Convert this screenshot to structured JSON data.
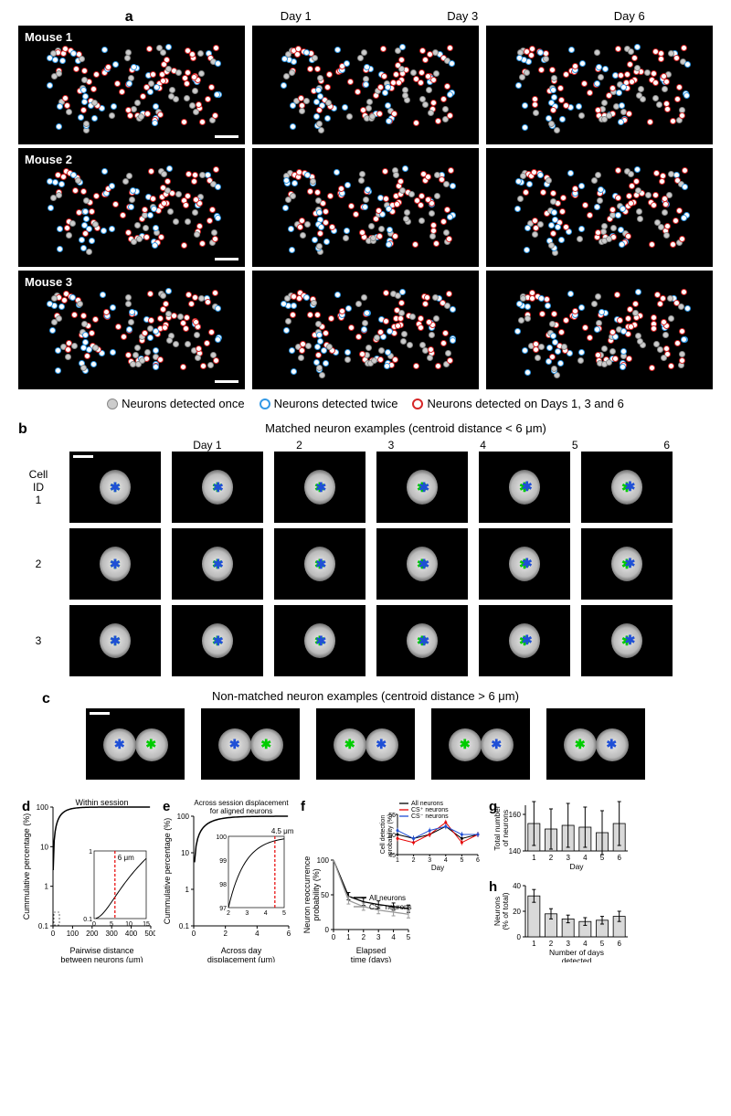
{
  "colors": {
    "black": "#000000",
    "white": "#ffffff",
    "gray_fill": "#cccccc",
    "gray_stroke": "#888888",
    "blue_stroke": "#3399e6",
    "red_stroke": "#d62728",
    "red_line": "#e60000",
    "blue_line": "#1f4fd6",
    "green_star": "#00cc00",
    "blue_star": "#1f4fd6"
  },
  "panel_a": {
    "label": "a",
    "column_headers": [
      "Day 1",
      "Day 3",
      "Day 6"
    ],
    "row_labels": [
      "Mouse 1",
      "Mouse 2",
      "Mouse 3"
    ],
    "legend": [
      {
        "key": "once",
        "text": "Neurons detected once"
      },
      {
        "key": "twice",
        "text": "Neurons detected twice"
      },
      {
        "key": "all",
        "text": "Neurons detected on Days 1, 3 and 6"
      }
    ]
  },
  "panel_b": {
    "label": "b",
    "title": "Matched neuron examples (centroid distance < 6 μm)",
    "day_header_prefix": "Day",
    "cell_id_header": "Cell\nID",
    "days": [
      "1",
      "2",
      "3",
      "4",
      "5",
      "6"
    ],
    "cell_ids": [
      "1",
      "2",
      "3"
    ]
  },
  "panel_c": {
    "label": "c",
    "title": "Non-matched neuron examples (centroid distance > 6 μm)",
    "count": 5
  },
  "panel_d": {
    "label": "d",
    "title": "Within session",
    "xlabel": "Pairwise distance\nbetween neurons (μm)",
    "ylabel": "Cummulative percentage (%)",
    "xlim": [
      0,
      500
    ],
    "xtick_step": 100,
    "yticks": [
      0.1,
      1,
      10,
      100
    ],
    "threshold_label": "6 μm",
    "inset_xlim": [
      0,
      15
    ],
    "inset_yticks": [
      0.1,
      1
    ]
  },
  "panel_e": {
    "label": "e",
    "title": "Across session displacement\nfor aligned neurons",
    "xlabel": "Across day\ndisplacement (μm)",
    "ylabel": "Cummulative percentage (%)",
    "xlim": [
      0,
      6
    ],
    "xtick_step": 2,
    "yticks": [
      0.1,
      1,
      10,
      100
    ],
    "threshold_label": "4.5 μm",
    "inset_xlim": [
      2,
      5
    ],
    "inset_yticks": [
      97,
      98,
      99,
      100
    ]
  },
  "panel_f": {
    "label": "f",
    "xlabel": "Elapsed\ntime (days)",
    "ylabel": "Neuron reoccurrence\nprobability (%)",
    "xlim": [
      0,
      5
    ],
    "xtick_step": 1,
    "ylim": [
      0,
      100
    ],
    "ytick_step": 50,
    "series": [
      {
        "name": "All neurons",
        "color": "#000000",
        "y": [
          100,
          48,
          40,
          36,
          33,
          30
        ]
      },
      {
        "name": "CS⁻ neurons",
        "color": "#999999",
        "y": [
          100,
          42,
          33,
          28,
          25,
          22
        ]
      }
    ],
    "inset": {
      "title_series": [
        {
          "name": "All neurons",
          "color": "#000000"
        },
        {
          "name": "CS⁺ neurons",
          "color": "#e60000"
        },
        {
          "name": "CS⁻ neurons",
          "color": "#1f4fd6"
        }
      ],
      "xlabel": "Day",
      "ylabel": "Cell detection\nprobability (%)",
      "xlim": [
        1,
        6
      ],
      "ylim": [
        45,
        55
      ],
      "series": [
        {
          "color": "#000000",
          "y": [
            50,
            49,
            50,
            52,
            49,
            50
          ]
        },
        {
          "color": "#e60000",
          "y": [
            49,
            48,
            50,
            53,
            48,
            50
          ]
        },
        {
          "color": "#1f4fd6",
          "y": [
            51,
            49,
            51,
            52,
            50,
            50
          ]
        }
      ]
    }
  },
  "panel_g": {
    "label": "g",
    "xlabel": "Day",
    "ylabel": "Total number\nof neurons",
    "categories": [
      "1",
      "2",
      "3",
      "4",
      "5",
      "6"
    ],
    "values": [
      155,
      152,
      154,
      153,
      150,
      155
    ],
    "errors": [
      12,
      11,
      12,
      11,
      12,
      12
    ],
    "ylim": [
      140,
      165
    ],
    "yticks": [
      140,
      160
    ],
    "bar_color": "#d9d9d9",
    "bar_stroke": "#000000"
  },
  "panel_h": {
    "label": "h",
    "xlabel": "Number of days\ndetected",
    "ylabel": "Neurons\n(% of total)",
    "categories": [
      "1",
      "2",
      "3",
      "4",
      "5",
      "6"
    ],
    "values": [
      32,
      18,
      14,
      12,
      13,
      16
    ],
    "errors": [
      5,
      4,
      3,
      3,
      3,
      4
    ],
    "ylim": [
      0,
      40
    ],
    "yticks": [
      0,
      20,
      40
    ],
    "bar_color": "#d9d9d9",
    "bar_stroke": "#000000"
  }
}
